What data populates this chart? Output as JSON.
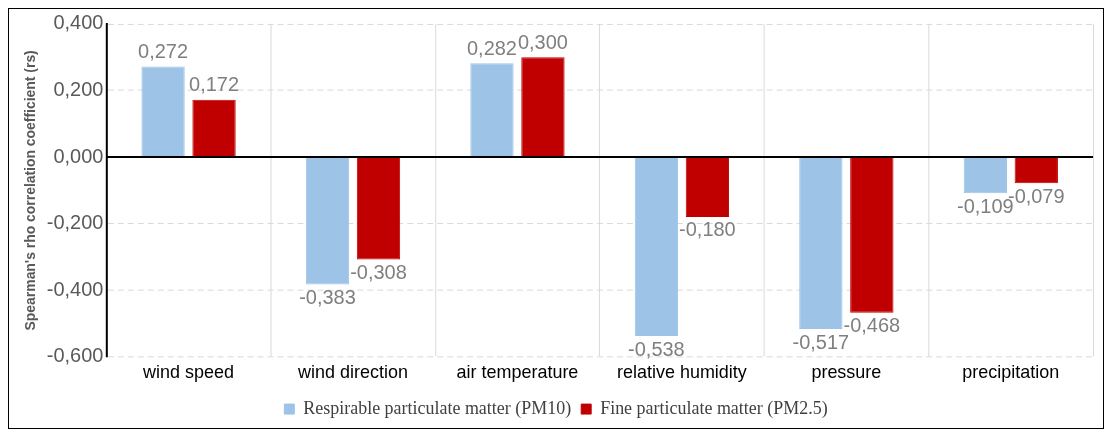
{
  "chart_data": {
    "type": "bar",
    "ylabel": "Spearman's rho correlation coefficient (rs)",
    "categories": [
      "wind speed",
      "wind direction",
      "air temperature",
      "relative humidity",
      "pressure",
      "precipitation"
    ],
    "series": [
      {
        "name": "Respirable particulate matter (PM10)",
        "color": "#9dc3e6",
        "values": [
          0.272,
          -0.383,
          0.282,
          -0.538,
          -0.517,
          -0.109
        ],
        "value_labels": [
          "0,272",
          "-0,383",
          "0,282",
          "-0,538",
          "-0,517",
          "-0,109"
        ]
      },
      {
        "name": "Fine particulate matter (PM2.5)",
        "color": "#c00000",
        "values": [
          0.172,
          -0.308,
          0.3,
          -0.18,
          -0.468,
          -0.079
        ],
        "value_labels": [
          "0,172",
          "-0,308",
          "0,300",
          "-0,180",
          "-0,468",
          "-0,079"
        ]
      }
    ],
    "ylim": [
      -0.6,
      0.4
    ],
    "yticks": [
      {
        "value": -0.6,
        "label": "-0,600"
      },
      {
        "value": -0.4,
        "label": "-0,400"
      },
      {
        "value": -0.2,
        "label": "-0,200"
      },
      {
        "value": 0,
        "label": "0,000"
      },
      {
        "value": 0.2,
        "label": "0,200"
      },
      {
        "value": 0.4,
        "label": "0,400"
      }
    ],
    "ref_lines": [
      {
        "axis": "y",
        "value": 0,
        "color": "#000000"
      }
    ],
    "grid": true,
    "legend": "bottom"
  }
}
